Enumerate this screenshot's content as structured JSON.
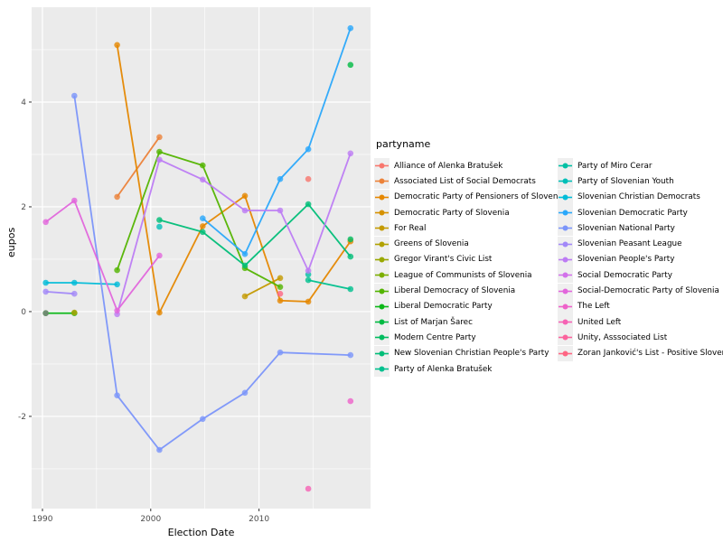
{
  "figure": {
    "xlabel": "Election Date",
    "ylabel": "eupos",
    "legend_title": "partyname"
  },
  "chart_data": {
    "type": "line",
    "title": "",
    "xlabel": "Election Date",
    "ylabel": "eupos",
    "legend_position": "right",
    "grid": true,
    "panel_background": "#ebebeb",
    "x_domain": [
      1989.0,
      2020.3
    ],
    "y_domain": [
      -3.76,
      5.81
    ],
    "x_ticks": [
      1990,
      2000,
      2010
    ],
    "x_minor_ticks": [
      1995,
      2005,
      2015
    ],
    "y_ticks": [
      4,
      2,
      0,
      -2
    ],
    "y_minor_ticks": [
      5,
      3,
      1,
      -1,
      -3
    ],
    "legend_split_index": 14,
    "series": [
      {
        "name": "Alliance of Alenka Bratušek",
        "color": "#F8766D",
        "points": [
          [
            2014.55,
            2.53
          ]
        ]
      },
      {
        "name": "Associated List of Social Democrats",
        "color": "#EC8239",
        "points": [
          [
            1996.9,
            2.19
          ],
          [
            2000.8,
            3.33
          ]
        ]
      },
      {
        "name": "Democratic Party of Pensioners of Slovenia",
        "color": "#E58700",
        "points": [
          [
            1996.9,
            5.09
          ],
          [
            2000.8,
            -0.02
          ],
          [
            2004.8,
            1.63
          ],
          [
            2008.7,
            2.21
          ],
          [
            2011.95,
            0.21
          ],
          [
            2014.55,
            0.19
          ],
          [
            2018.45,
            1.34
          ]
        ]
      },
      {
        "name": "Democratic Party of Slovenia",
        "color": "#D59100",
        "points": []
      },
      {
        "name": "For Real",
        "color": "#C49A00",
        "points": [
          [
            2008.7,
            0.29
          ],
          [
            2011.95,
            0.64
          ]
        ]
      },
      {
        "name": "Greens of Slovenia",
        "color": "#B1A100",
        "points": [
          [
            1992.95,
            -0.02
          ]
        ],
        "top": true
      },
      {
        "name": "Gregor Virant's Civic List",
        "color": "#99A800",
        "points": []
      },
      {
        "name": "League of Communists of Slovenia",
        "color": "#7CAE00",
        "points": []
      },
      {
        "name": "Liberal Democracy of Slovenia",
        "color": "#53B400",
        "points": [
          [
            1996.9,
            0.79
          ],
          [
            2000.8,
            3.05
          ],
          [
            2004.8,
            2.79
          ],
          [
            2008.7,
            0.83
          ],
          [
            2011.95,
            0.47
          ]
        ]
      },
      {
        "name": "Liberal Democratic Party",
        "color": "#0CB717",
        "points": [
          [
            1990.3,
            -0.03
          ],
          [
            1992.95,
            -0.03
          ]
        ]
      },
      {
        "name": "List of Marjan Šarec",
        "color": "#00BA42",
        "points": [
          [
            2018.45,
            4.71
          ]
        ]
      },
      {
        "name": "Modern Centre Party",
        "color": "#00BC5F",
        "points": [
          [
            2018.45,
            1.38
          ]
        ]
      },
      {
        "name": "New Slovenian Christian People's Party",
        "color": "#00BE78",
        "points": [
          [
            2000.8,
            1.75
          ],
          [
            2004.8,
            1.52
          ],
          [
            2008.7,
            0.88
          ],
          [
            2014.55,
            2.05
          ],
          [
            2018.45,
            1.05
          ]
        ]
      },
      {
        "name": "Party of Alenka Bratušek",
        "color": "#00C08E",
        "points": [
          [
            2014.55,
            0.6
          ],
          [
            2018.45,
            0.43
          ]
        ]
      },
      {
        "name": "Party of Miro Cerar",
        "color": "#00C0A4",
        "points": [
          [
            2014.55,
            0.71
          ]
        ]
      },
      {
        "name": "Party of Slovenian Youth",
        "color": "#00BFB8",
        "points": [
          [
            2000.8,
            1.62
          ]
        ]
      },
      {
        "name": "Slovenian Christian Democrats",
        "color": "#00BCD8",
        "points": [
          [
            1990.3,
            0.55
          ],
          [
            1992.95,
            0.55
          ],
          [
            1996.9,
            0.52
          ]
        ]
      },
      {
        "name": "Slovenian Democratic Party",
        "color": "#2AA8FB",
        "points": [
          [
            2004.8,
            1.78
          ],
          [
            2008.7,
            1.1
          ],
          [
            2011.95,
            2.53
          ],
          [
            2014.55,
            3.1
          ],
          [
            2018.45,
            5.41
          ]
        ]
      },
      {
        "name": "Slovenian National Party",
        "color": "#7B95FA",
        "points": [
          [
            1992.95,
            4.12
          ],
          [
            1996.9,
            -1.6
          ],
          [
            2000.8,
            -2.64
          ],
          [
            2004.8,
            -2.05
          ],
          [
            2008.7,
            -1.55
          ],
          [
            2011.95,
            -0.78
          ],
          [
            2018.45,
            -0.83
          ]
        ]
      },
      {
        "name": "Slovenian Peasant League",
        "color": "#A288F8",
        "points": [
          [
            1990.3,
            0.38
          ],
          [
            1992.95,
            0.34
          ]
        ]
      },
      {
        "name": "Slovenian People's Party",
        "color": "#BD7CF4",
        "points": [
          [
            1996.9,
            -0.05
          ],
          [
            2000.8,
            2.9
          ],
          [
            2004.8,
            2.52
          ],
          [
            2008.7,
            1.93
          ],
          [
            2011.95,
            1.93
          ],
          [
            2014.55,
            0.78
          ],
          [
            2018.45,
            3.02
          ]
        ]
      },
      {
        "name": "Social Democratic Party",
        "color": "#D271EA",
        "points": []
      },
      {
        "name": "Social-Democratic Party of Slovenia",
        "color": "#E266DC",
        "points": [
          [
            1990.3,
            1.71
          ],
          [
            1992.95,
            2.12
          ],
          [
            1996.9,
            0.02
          ],
          [
            2000.8,
            1.07
          ]
        ]
      },
      {
        "name": "The Left",
        "color": "#EE61C9",
        "points": [
          [
            2018.45,
            -1.71
          ]
        ]
      },
      {
        "name": "United Left",
        "color": "#F662B4",
        "points": [
          [
            2014.55,
            -3.38
          ]
        ]
      },
      {
        "name": "Unity, Asssociated List",
        "color": "#FB639D",
        "points": []
      },
      {
        "name": "Zoran Janković's List - Positive Slovenia",
        "color": "#FE6583",
        "points": [
          [
            2011.95,
            0.34
          ]
        ]
      }
    ],
    "unlabeled_points": [
      {
        "x": 1990.3,
        "y": -0.03,
        "color": "#808080"
      }
    ]
  }
}
